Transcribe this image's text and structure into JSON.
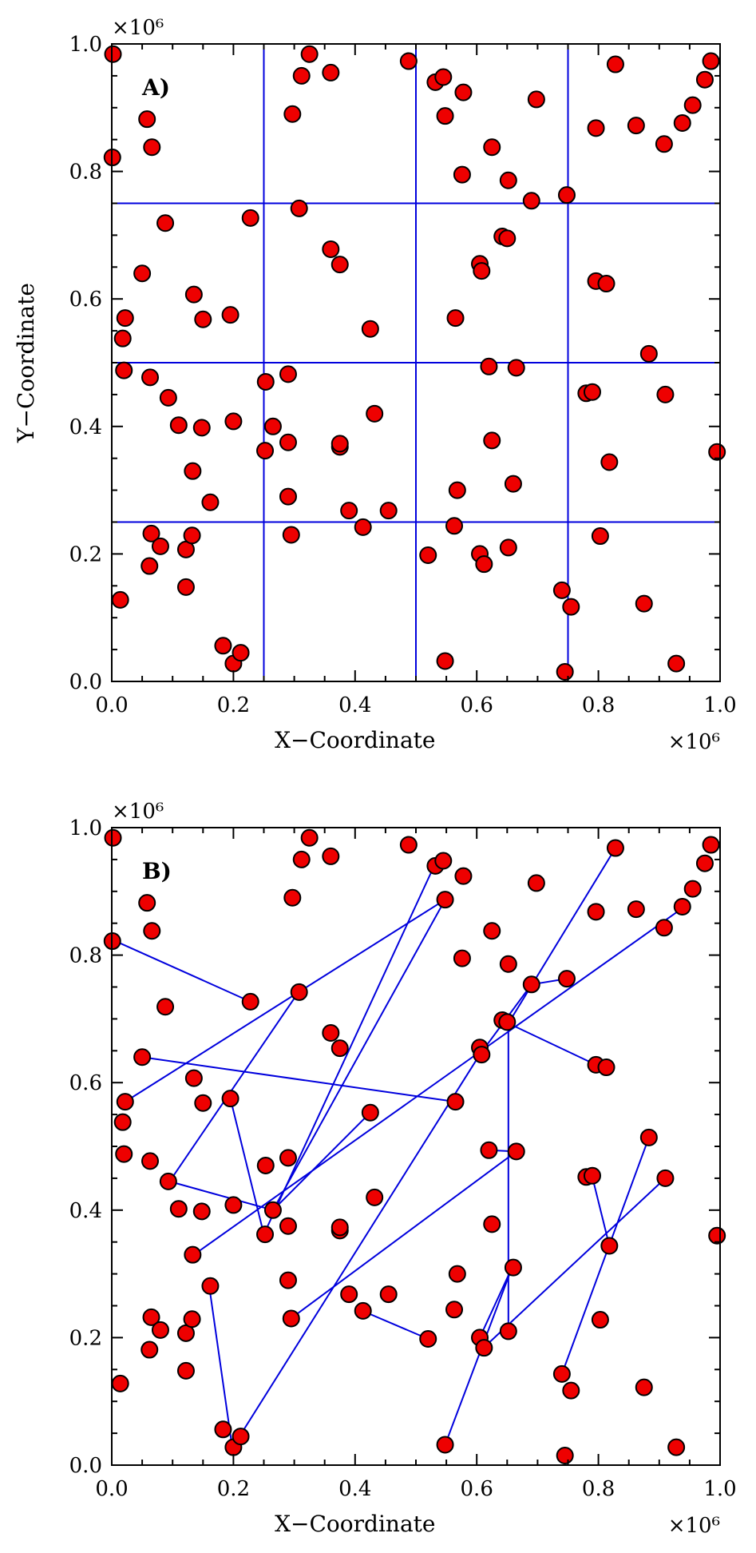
{
  "chart_data": [
    {
      "type": "scatter",
      "panel_label": "A)",
      "xlabel": "X−Coordinate",
      "ylabel": "Y−Coordinate",
      "xlim": [
        0,
        1000000
      ],
      "ylim": [
        0,
        1000000
      ],
      "x_multiplier_label": "×10⁶",
      "y_multiplier_label": "×10⁶",
      "xticks": [
        "0.0",
        "0.2",
        "0.4",
        "0.6",
        "0.8",
        "1.0"
      ],
      "yticks": [
        "0.0",
        "0.2",
        "0.4",
        "0.6",
        "0.8",
        "1.0"
      ],
      "grid_lines": {
        "x": [
          250000,
          500000,
          750000
        ],
        "y": [
          250000,
          500000,
          750000
        ],
        "color": "#0000dd"
      },
      "marker_color": "#ee0000",
      "points_ref": "points"
    },
    {
      "type": "scatter",
      "panel_label": "B)",
      "xlabel": "X−Coordinate",
      "ylabel": "",
      "xlim": [
        0,
        1000000
      ],
      "ylim": [
        0,
        1000000
      ],
      "x_multiplier_label": "×10⁶",
      "y_multiplier_label": "×10⁶",
      "xticks": [
        "0.0",
        "0.2",
        "0.4",
        "0.6",
        "0.8",
        "1.0"
      ],
      "yticks": [
        "0.0",
        "0.2",
        "0.4",
        "0.6",
        "0.8",
        "1.0"
      ],
      "link_color": "#0000dd",
      "marker_color": "#ee0000",
      "points_ref": "points",
      "links": [
        [
          [
            6000,
            822000
          ],
          [
            228000,
            727000
          ]
        ],
        [
          [
            22000,
            570000
          ],
          [
            548000,
            887000
          ]
        ],
        [
          [
            50000,
            640000
          ],
          [
            565000,
            570000
          ]
        ],
        [
          [
            95000,
            445000
          ],
          [
            307000,
            742000
          ]
        ],
        [
          [
            95000,
            445000
          ],
          [
            265000,
            400000
          ]
        ],
        [
          [
            195000,
            575000
          ],
          [
            250000,
            362000
          ]
        ],
        [
          [
            250000,
            362000
          ],
          [
            530000,
            940000
          ]
        ],
        [
          [
            265000,
            400000
          ],
          [
            548000,
            887000
          ]
        ],
        [
          [
            265000,
            400000
          ],
          [
            425000,
            553000
          ]
        ],
        [
          [
            135000,
            330000
          ],
          [
            940000,
            875000
          ]
        ],
        [
          [
            160000,
            282000
          ],
          [
            198000,
            28000
          ]
        ],
        [
          [
            210000,
            45000
          ],
          [
            605000,
            644000
          ]
        ],
        [
          [
            293000,
            229000
          ],
          [
            665000,
            492000
          ]
        ],
        [
          [
            412000,
            242000
          ],
          [
            520000,
            198000
          ]
        ],
        [
          [
            548000,
            32000
          ],
          [
            658000,
            310000
          ]
        ],
        [
          [
            605000,
            200000
          ],
          [
            658000,
            310000
          ]
        ],
        [
          [
            620000,
            494000
          ],
          [
            665000,
            492000
          ]
        ],
        [
          [
            652000,
            693000
          ],
          [
            652000,
            210000
          ]
        ],
        [
          [
            652000,
            693000
          ],
          [
            828000,
            968000
          ]
        ],
        [
          [
            652000,
            693000
          ],
          [
            796000,
            628000
          ]
        ],
        [
          [
            605000,
            644000
          ],
          [
            690000,
            754000
          ]
        ],
        [
          [
            690000,
            754000
          ],
          [
            748000,
            763000
          ]
        ],
        [
          [
            740000,
            143000
          ],
          [
            883000,
            514000
          ]
        ],
        [
          [
            610000,
            183000
          ],
          [
            910000,
            450000
          ]
        ],
        [
          [
            790000,
            452000
          ],
          [
            818000,
            344000
          ]
        ]
      ]
    }
  ],
  "points": [
    [
      2000,
      984000
    ],
    [
      1000,
      822000
    ],
    [
      58000,
      882000
    ],
    [
      66000,
      838000
    ],
    [
      88000,
      719000
    ],
    [
      50000,
      640000
    ],
    [
      22000,
      570000
    ],
    [
      18000,
      538000
    ],
    [
      20000,
      488000
    ],
    [
      14000,
      128000
    ],
    [
      63000,
      477000
    ],
    [
      93000,
      445000
    ],
    [
      110000,
      402000
    ],
    [
      135000,
      607000
    ],
    [
      150000,
      568000
    ],
    [
      148000,
      398000
    ],
    [
      133000,
      330000
    ],
    [
      162000,
      281000
    ],
    [
      195000,
      575000
    ],
    [
      200000,
      408000
    ],
    [
      65000,
      232000
    ],
    [
      80000,
      212000
    ],
    [
      62000,
      181000
    ],
    [
      122000,
      207000
    ],
    [
      132000,
      229000
    ],
    [
      122000,
      148000
    ],
    [
      183000,
      56000
    ],
    [
      200000,
      28000
    ],
    [
      212000,
      45000
    ],
    [
      228000,
      727000
    ],
    [
      253000,
      470000
    ],
    [
      252000,
      362000
    ],
    [
      265000,
      400000
    ],
    [
      290000,
      482000
    ],
    [
      290000,
      375000
    ],
    [
      290000,
      290000
    ],
    [
      295000,
      230000
    ],
    [
      297000,
      890000
    ],
    [
      312000,
      950000
    ],
    [
      308000,
      742000
    ],
    [
      325000,
      984000
    ],
    [
      360000,
      955000
    ],
    [
      360000,
      678000
    ],
    [
      375000,
      654000
    ],
    [
      375000,
      368000
    ],
    [
      375000,
      373000
    ],
    [
      390000,
      268000
    ],
    [
      413000,
      242000
    ],
    [
      425000,
      553000
    ],
    [
      432000,
      420000
    ],
    [
      455000,
      268000
    ],
    [
      488000,
      973000
    ],
    [
      532000,
      940000
    ],
    [
      545000,
      948000
    ],
    [
      548000,
      887000
    ],
    [
      548000,
      32000
    ],
    [
      520000,
      198000
    ],
    [
      565000,
      570000
    ],
    [
      568000,
      300000
    ],
    [
      563000,
      244000
    ],
    [
      578000,
      924000
    ],
    [
      576000,
      795000
    ],
    [
      605000,
      655000
    ],
    [
      608000,
      644000
    ],
    [
      605000,
      200000
    ],
    [
      612000,
      184000
    ],
    [
      620000,
      494000
    ],
    [
      625000,
      378000
    ],
    [
      625000,
      838000
    ],
    [
      642000,
      698000
    ],
    [
      650000,
      695000
    ],
    [
      652000,
      786000
    ],
    [
      652000,
      210000
    ],
    [
      660000,
      310000
    ],
    [
      665000,
      492000
    ],
    [
      690000,
      754000
    ],
    [
      698000,
      913000
    ],
    [
      740000,
      143000
    ],
    [
      748000,
      763000
    ],
    [
      745000,
      15000
    ],
    [
      755000,
      117000
    ],
    [
      780000,
      452000
    ],
    [
      790000,
      454000
    ],
    [
      796000,
      868000
    ],
    [
      796000,
      628000
    ],
    [
      803000,
      228000
    ],
    [
      813000,
      624000
    ],
    [
      818000,
      344000
    ],
    [
      828000,
      968000
    ],
    [
      862000,
      872000
    ],
    [
      875000,
      122000
    ],
    [
      883000,
      514000
    ],
    [
      908000,
      843000
    ],
    [
      910000,
      450000
    ],
    [
      928000,
      28000
    ],
    [
      938000,
      876000
    ],
    [
      955000,
      904000
    ],
    [
      975000,
      944000
    ],
    [
      985000,
      973000
    ],
    [
      995000,
      360000
    ]
  ]
}
